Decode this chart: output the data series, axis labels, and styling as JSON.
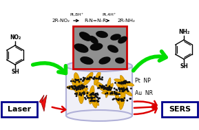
{
  "bg_color": "#ffffff",
  "reaction_cat1": "Pt,8H⁺",
  "reaction_cat2": "Pt,4H⁺",
  "reaction_eq_left": "2R-NO₂",
  "reaction_intermediate": "R-N=N-R",
  "reaction_eq_right": "2R-NH₂",
  "label_pt_np": "Pt  NP",
  "label_au_nr": "Au  NR",
  "label_laser": "Laser",
  "label_sers": "SERS",
  "label_no2_top": "NO₂",
  "label_sh_left": "SH",
  "label_nh2_top": "NH₂",
  "label_sh_right": "SH",
  "vessel_edge_color": "#b0b0d8",
  "vessel_fill": "#f0f0f8",
  "gold_color": "#e8a800",
  "pt_color": "#111111",
  "green_arrow_color": "#00dd00",
  "red_arrow_color": "#dd0000",
  "laser_box_color": "#00008b",
  "sers_box_color": "#00008b",
  "inset_border_color": "#cc0000",
  "inset_bg": "#a0a0a0"
}
